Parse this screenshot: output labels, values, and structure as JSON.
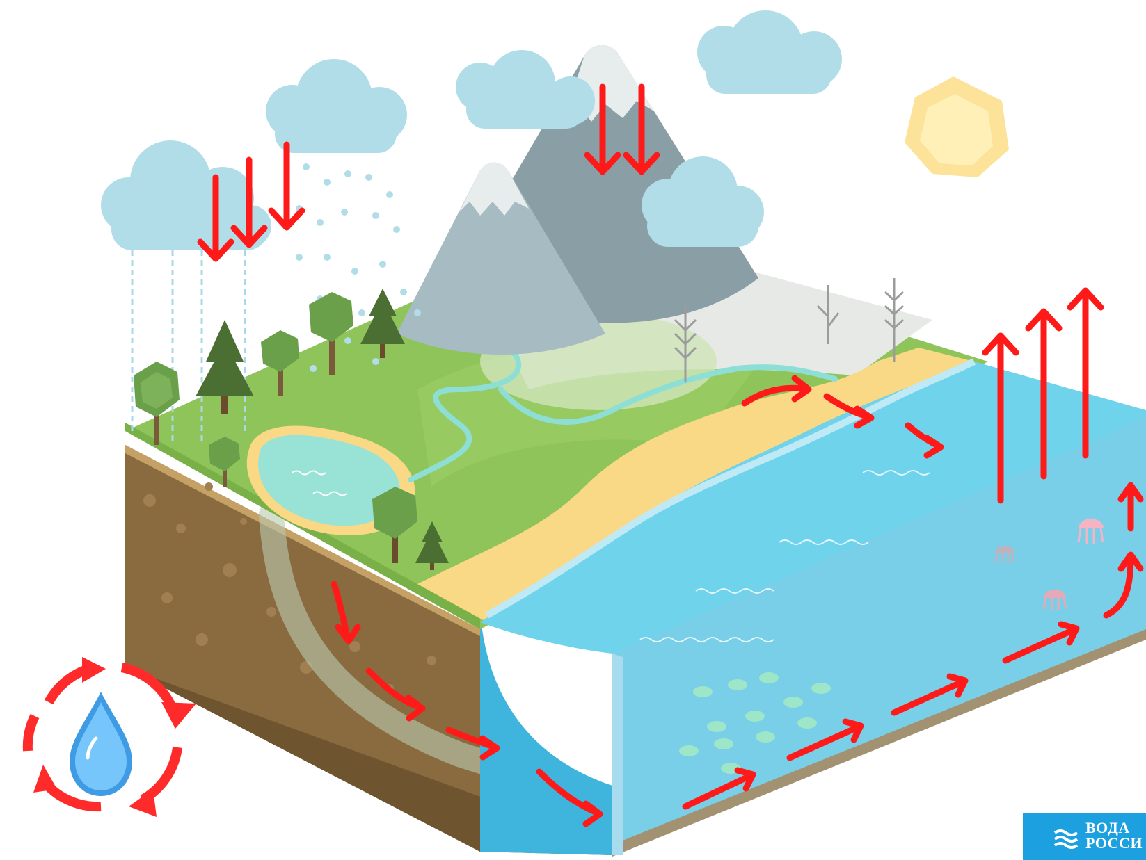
{
  "logo": {
    "line1": "ВОДА",
    "line2": "РОССИ"
  },
  "icons": [
    "cloud-icon",
    "sun-icon",
    "mountain-icon",
    "tree-icon",
    "fir-tree-icon",
    "lake-icon",
    "river-icon",
    "ocean-icon",
    "fish-icon",
    "jellyfish-icon",
    "water-drop-icon",
    "cycle-arrows-icon",
    "precipitation-arrow-icon",
    "evaporation-arrow-icon",
    "runoff-arrow-icon",
    "groundwater-arrow-icon",
    "water-waves-icon"
  ],
  "colors": {
    "arrow": "#ff1a1a",
    "cloud": "#a9d8e6",
    "sun": "#fde29a",
    "grass": "#8fc45a",
    "soil": "#8a6b3f",
    "ocean": "#6fcfe8",
    "sand": "#f9d886",
    "logo_bg": "#1da0e0"
  }
}
